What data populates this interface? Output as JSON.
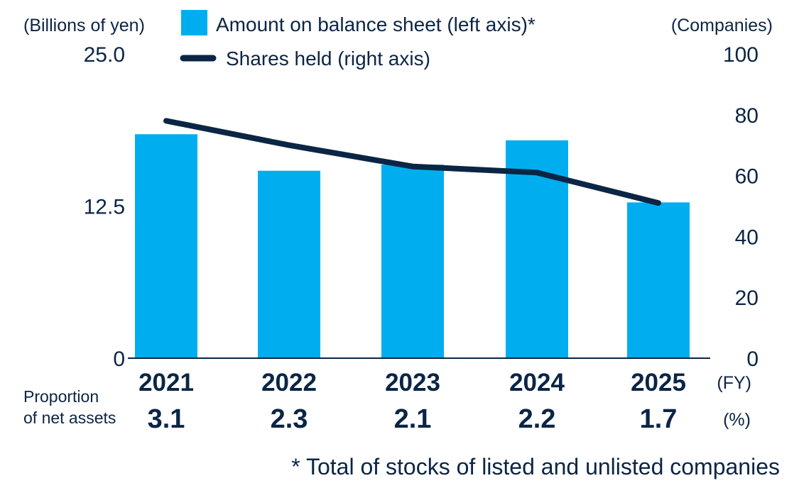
{
  "chart_data": {
    "type": "bar",
    "categories": [
      "2021",
      "2022",
      "2023",
      "2024",
      "2025"
    ],
    "x_unit": "(FY)",
    "series": [
      {
        "name": "Amount on balance sheet (left axis)*",
        "kind": "bar",
        "axis": "left",
        "color": "#00aeef",
        "values": [
          18.4,
          15.4,
          15.9,
          17.9,
          12.8
        ]
      },
      {
        "name": "Shares held (right axis)",
        "kind": "line",
        "axis": "right",
        "color": "#0b2545",
        "values": [
          78,
          70,
          63,
          61,
          51
        ]
      }
    ],
    "left_axis": {
      "unit_label": "(Billions of yen)",
      "range": [
        0,
        25.0
      ],
      "ticks": [
        "0",
        "12.5",
        "25.0"
      ]
    },
    "right_axis": {
      "unit_label": "(Companies)",
      "range": [
        0,
        100
      ],
      "ticks": [
        "0",
        "20",
        "40",
        "60",
        "80",
        "100"
      ]
    },
    "proportion_row": {
      "label_line1": "Proportion",
      "label_line2": "of net assets",
      "unit": "(%)",
      "values": [
        "3.1",
        "2.3",
        "2.1",
        "2.2",
        "1.7"
      ]
    },
    "footnote": "* Total of stocks of listed and unlisted companies",
    "legend_position": "top"
  }
}
